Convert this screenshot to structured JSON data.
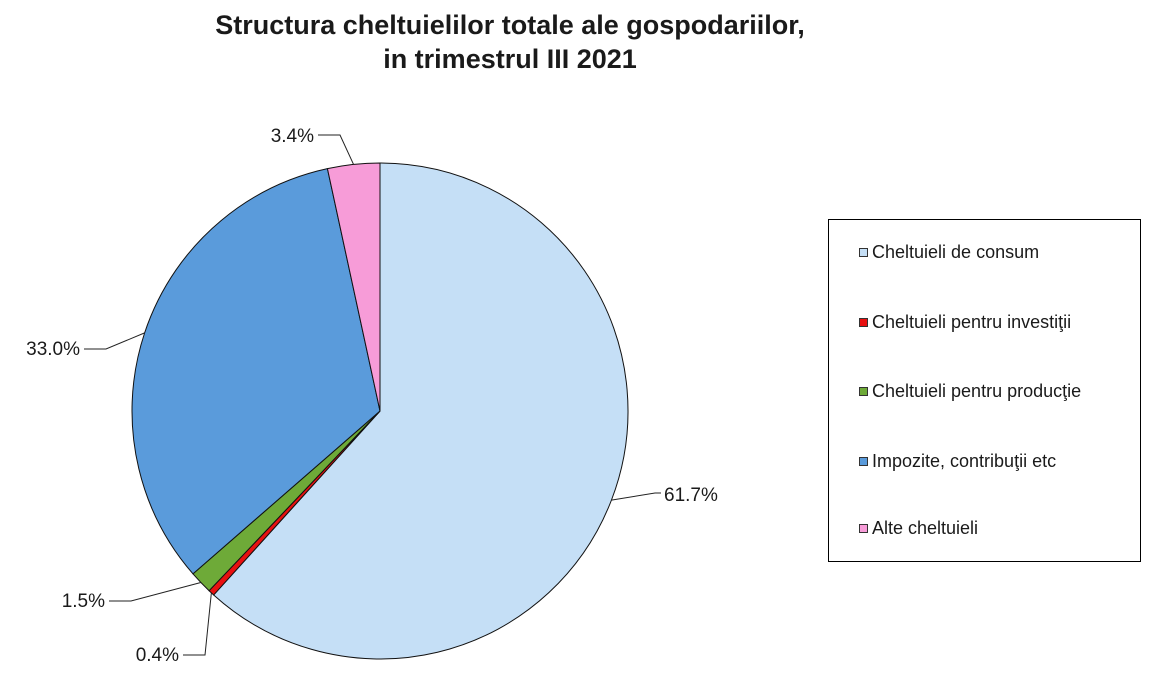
{
  "chart_data": {
    "type": "pie",
    "title": [
      "Structura cheltuielilor totale ale gospodariilor,",
      "in trimestrul III 2021"
    ],
    "slices": [
      {
        "label": "Cheltuieli de consum",
        "value": 61.7,
        "value_label": "61.7%",
        "color": "#C5DFF6"
      },
      {
        "label": "Cheltuieli pentru investiţii",
        "value": 0.4,
        "value_label": "0.4%",
        "color": "#E81010"
      },
      {
        "label": "Cheltuieli pentru producţie",
        "value": 1.5,
        "value_label": "1.5%",
        "color": "#6EAA38"
      },
      {
        "label": "Impozite, contribuţii etc",
        "value": 33.0,
        "value_label": "33.0%",
        "color": "#5A9BDB"
      },
      {
        "label": "Alte cheltuieli",
        "value": 3.4,
        "value_label": "3.4%",
        "color": "#F79CD8"
      }
    ],
    "start_angle": "12 o'clock",
    "direction": "clockwise",
    "legend_position": "right"
  }
}
